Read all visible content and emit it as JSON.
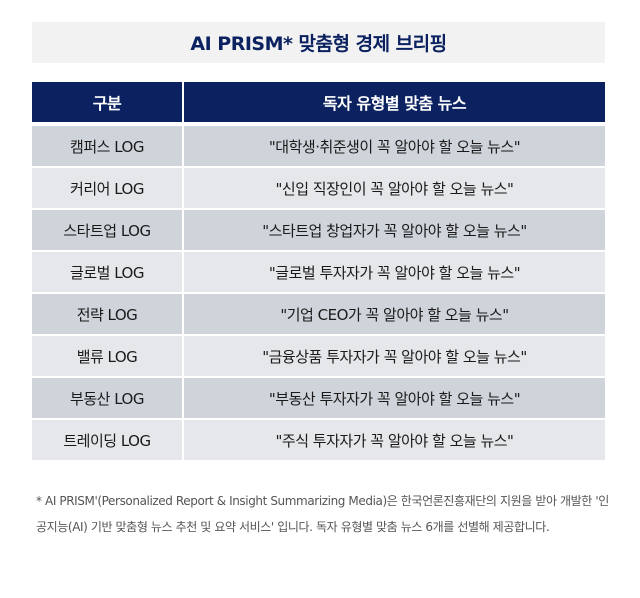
{
  "title": "AI PRISM* 맞춤형 경제 브리핑",
  "table": {
    "headers": [
      "구분",
      "독자 유형별 맞춤 뉴스"
    ],
    "rows": [
      {
        "category": "캠퍼스 LOG",
        "news": "\"대학생·취준생이 꼭 알아야 할 오늘 뉴스\""
      },
      {
        "category": "커리어 LOG",
        "news": "\"신입 직장인이 꼭 알아야 할 오늘 뉴스\""
      },
      {
        "category": "스타트업 LOG",
        "news": "\"스타트업 창업자가 꼭 알아야 할 오늘 뉴스\""
      },
      {
        "category": "글로벌 LOG",
        "news": "\"글로벌 투자자가 꼭 알아야 할 오늘 뉴스\""
      },
      {
        "category": "전략 LOG",
        "news": "\"기업 CEO가 꼭 알아야 할 오늘 뉴스\""
      },
      {
        "category": "밸류 LOG",
        "news": "\"금융상품 투자자가 꼭 알아야 할 오늘 뉴스\""
      },
      {
        "category": "부동산 LOG",
        "news": "\"부동산 투자자가 꼭 알아야 할 오늘 뉴스\""
      },
      {
        "category": "트레이딩 LOG",
        "news": "\"주식 투자자가 꼭 알아야 할 오늘 뉴스\""
      }
    ]
  },
  "footnote": "* AI PRISM'(Personalized Report & Insight Summarizing Media)은 한국언론진흥재단의 지원을 받아 개발한 '인공지능(AI) 기반 맞춤형 뉴스 추천 및 요약 서비스' 입니다. 독자 유형별 맞춤 뉴스 6개를 선별해 제공합니다.",
  "colors": {
    "header_bg": "#0b2160",
    "row_odd": "#cfd4da",
    "row_even": "#e5e7ea",
    "title_bg": "#f2f2f2"
  }
}
